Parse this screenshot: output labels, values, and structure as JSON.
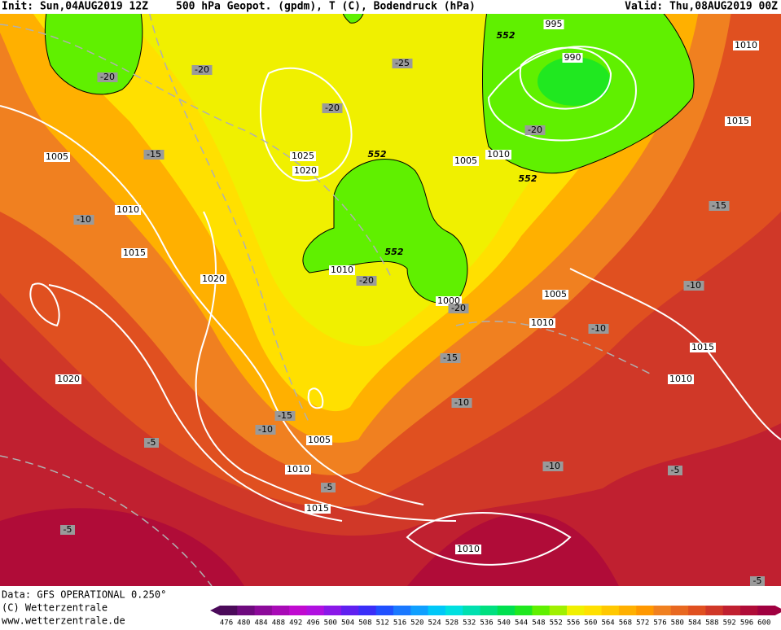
{
  "header": {
    "init": "Init: Sun,04AUG2019 12Z",
    "title": "500 hPa Geopot. (gpdm), T (C), Bodendruck (hPa)",
    "valid": "Valid: Thu,08AUG2019 00Z"
  },
  "footer": [
    "Data: GFS OPERATIONAL 0.250°",
    "(C) Wetterzentrale",
    "www.wetterzentrale.de"
  ],
  "colorbar": {
    "levels": [
      476,
      480,
      484,
      488,
      492,
      496,
      500,
      504,
      508,
      512,
      516,
      520,
      524,
      528,
      532,
      536,
      540,
      544,
      548,
      552,
      556,
      560,
      564,
      568,
      572,
      576,
      580,
      584,
      588,
      592,
      596,
      600
    ],
    "colors": [
      "#4b0a5a",
      "#6e0a7e",
      "#8c0a9a",
      "#a80ab6",
      "#c00ad0",
      "#b010e0",
      "#8a18e8",
      "#6020f0",
      "#3a2ef8",
      "#2050ff",
      "#1a78ff",
      "#10a0ff",
      "#00c8f8",
      "#00e0e0",
      "#00e0b0",
      "#00e080",
      "#00e050",
      "#20e820",
      "#60f000",
      "#a0f000",
      "#f0f000",
      "#ffe000",
      "#ffc800",
      "#ffb000",
      "#ff9800",
      "#f08020",
      "#e86820",
      "#e05020",
      "#d03828",
      "#c02030",
      "#b00c38",
      "#a00040"
    ]
  },
  "map_labels": {
    "isobars": [
      "995",
      "990",
      "1010",
      "1015",
      "1005",
      "1025",
      "1020",
      "1010",
      "1015",
      "1020",
      "1010",
      "1005",
      "1010",
      "1000",
      "1005",
      "1010",
      "1015",
      "1010",
      "1020",
      "1005",
      "1010",
      "1015",
      "1010"
    ],
    "temperatures": [
      "-20",
      "-20",
      "-25",
      "-20",
      "-15",
      "-10",
      "-20",
      "-15",
      "-10",
      "-20",
      "-20",
      "-10",
      "-15",
      "-10",
      "-15",
      "-10",
      "-5",
      "-5",
      "-10",
      "-5",
      "-5",
      "-5"
    ],
    "geopotential": [
      "552",
      "552",
      "552",
      "552"
    ]
  }
}
